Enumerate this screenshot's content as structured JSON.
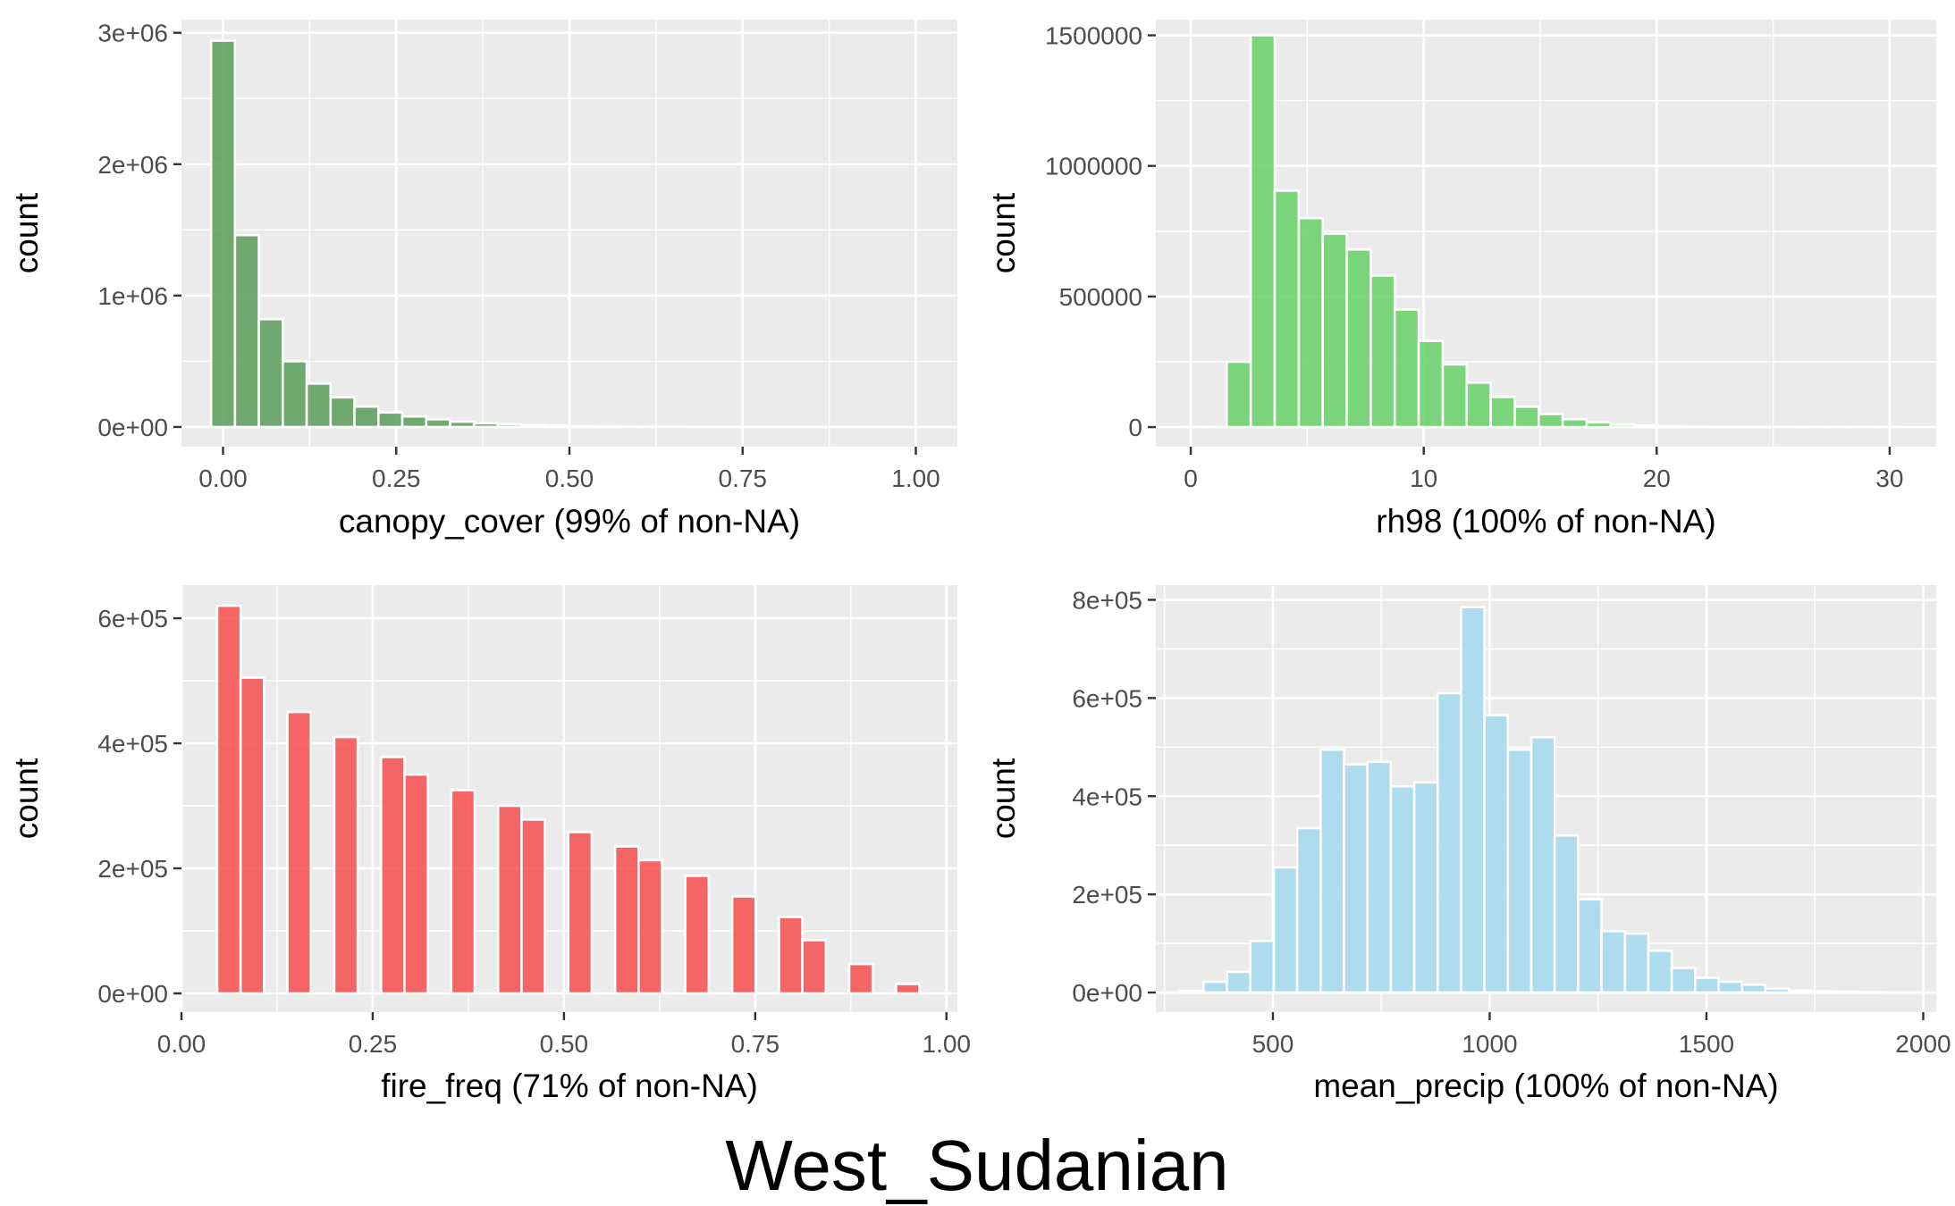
{
  "title": "West_Sudanian",
  "chart_data": [
    {
      "type": "bar",
      "subtype": "histogram",
      "xlabel": "canopy_cover (99% of non-NA)",
      "ylabel": "count",
      "fill_color": "#5a9e5a",
      "bar_alpha": 0.85,
      "xlim": [
        -0.06,
        1.06
      ],
      "ylim": [
        -150000,
        3100000
      ],
      "x_ticks": [
        0,
        0.25,
        0.5,
        0.75,
        1.0
      ],
      "x_tick_labels": [
        "0.00",
        "0.25",
        "0.50",
        "0.75",
        "1.00"
      ],
      "y_ticks": [
        0,
        1000000,
        2000000,
        3000000
      ],
      "y_tick_labels": [
        "0e+00",
        "1e+06",
        "2e+06",
        "3e+06"
      ],
      "bin_width": 0.0345,
      "bins": [
        {
          "x": 0.0,
          "count": 2940000
        },
        {
          "x": 0.0345,
          "count": 1460000
        },
        {
          "x": 0.069,
          "count": 820000
        },
        {
          "x": 0.1035,
          "count": 500000
        },
        {
          "x": 0.138,
          "count": 330000
        },
        {
          "x": 0.1725,
          "count": 225000
        },
        {
          "x": 0.207,
          "count": 155000
        },
        {
          "x": 0.2415,
          "count": 110000
        },
        {
          "x": 0.276,
          "count": 80000
        },
        {
          "x": 0.3105,
          "count": 58000
        },
        {
          "x": 0.345,
          "count": 40000
        },
        {
          "x": 0.3795,
          "count": 28000
        },
        {
          "x": 0.414,
          "count": 20000
        },
        {
          "x": 0.4485,
          "count": 14000
        },
        {
          "x": 0.483,
          "count": 10000
        },
        {
          "x": 0.5175,
          "count": 7000
        },
        {
          "x": 0.552,
          "count": 5000
        },
        {
          "x": 0.5865,
          "count": 3500
        },
        {
          "x": 0.621,
          "count": 2500
        },
        {
          "x": 0.6555,
          "count": 1800
        },
        {
          "x": 0.69,
          "count": 1200
        },
        {
          "x": 0.7245,
          "count": 900
        },
        {
          "x": 0.759,
          "count": 600
        },
        {
          "x": 0.7935,
          "count": 400
        },
        {
          "x": 0.828,
          "count": 300
        },
        {
          "x": 0.8625,
          "count": 200
        },
        {
          "x": 0.897,
          "count": 150
        },
        {
          "x": 0.9315,
          "count": 100
        },
        {
          "x": 0.966,
          "count": 80
        },
        {
          "x": 1.0005,
          "count": 50
        }
      ]
    },
    {
      "type": "bar",
      "subtype": "histogram",
      "xlabel": "rh98 (100% of non-NA)",
      "ylabel": "count",
      "fill_color": "#66d166",
      "bar_alpha": 0.85,
      "xlim": [
        -1.5,
        32.0
      ],
      "ylim": [
        -75000,
        1560000
      ],
      "x_ticks": [
        0,
        10,
        20,
        30
      ],
      "x_tick_labels": [
        "0",
        "10",
        "20",
        "30"
      ],
      "y_ticks": [
        0,
        500000,
        1000000,
        1500000
      ],
      "y_tick_labels": [
        "0",
        "500000",
        "1000000",
        "1500000"
      ],
      "bin_width": 1.03,
      "bins": [
        {
          "x": 0.0,
          "count": 0
        },
        {
          "x": 1.03,
          "count": 0
        },
        {
          "x": 2.06,
          "count": 250000
        },
        {
          "x": 3.09,
          "count": 1500000
        },
        {
          "x": 4.12,
          "count": 905000
        },
        {
          "x": 5.15,
          "count": 800000
        },
        {
          "x": 6.18,
          "count": 740000
        },
        {
          "x": 7.21,
          "count": 680000
        },
        {
          "x": 8.24,
          "count": 580000
        },
        {
          "x": 9.27,
          "count": 450000
        },
        {
          "x": 10.3,
          "count": 330000
        },
        {
          "x": 11.33,
          "count": 240000
        },
        {
          "x": 12.36,
          "count": 170000
        },
        {
          "x": 13.39,
          "count": 115000
        },
        {
          "x": 14.42,
          "count": 78000
        },
        {
          "x": 15.45,
          "count": 50000
        },
        {
          "x": 16.48,
          "count": 30000
        },
        {
          "x": 17.51,
          "count": 18000
        },
        {
          "x": 18.54,
          "count": 10000
        },
        {
          "x": 19.57,
          "count": 6000
        },
        {
          "x": 20.6,
          "count": 3500
        },
        {
          "x": 21.63,
          "count": 2000
        },
        {
          "x": 22.66,
          "count": 1200
        },
        {
          "x": 23.69,
          "count": 700
        },
        {
          "x": 24.72,
          "count": 400
        },
        {
          "x": 25.75,
          "count": 250
        },
        {
          "x": 26.78,
          "count": 150
        },
        {
          "x": 27.81,
          "count": 100
        },
        {
          "x": 28.84,
          "count": 60
        },
        {
          "x": 29.87,
          "count": 40
        }
      ]
    },
    {
      "type": "bar",
      "subtype": "histogram",
      "xlabel": "fire_freq (71% of non-NA)",
      "ylabel": "count",
      "fill_color": "#f84d4d",
      "bar_alpha": 0.85,
      "xlim": [
        0.0,
        1.0143
      ],
      "ylim": [
        -30000,
        653000
      ],
      "x_ticks": [
        0,
        0.25,
        0.5,
        0.75,
        1.0
      ],
      "x_tick_labels": [
        "0.00",
        "0.25",
        "0.50",
        "0.75",
        "1.00"
      ],
      "y_ticks": [
        0,
        200000,
        400000,
        600000
      ],
      "y_tick_labels": [
        "0e+00",
        "2e+05",
        "4e+05",
        "6e+05"
      ],
      "bin_width": 0.0306,
      "bins": [
        {
          "x": 0.062,
          "count": 620000
        },
        {
          "x": 0.0926,
          "count": 505000
        },
        {
          "x": 0.1538,
          "count": 450000
        },
        {
          "x": 0.215,
          "count": 410000
        },
        {
          "x": 0.2762,
          "count": 378000
        },
        {
          "x": 0.3068,
          "count": 350000
        },
        {
          "x": 0.368,
          "count": 325000
        },
        {
          "x": 0.4292,
          "count": 300000
        },
        {
          "x": 0.4598,
          "count": 278000
        },
        {
          "x": 0.521,
          "count": 258000
        },
        {
          "x": 0.5822,
          "count": 235000
        },
        {
          "x": 0.6128,
          "count": 213000
        },
        {
          "x": 0.674,
          "count": 188000
        },
        {
          "x": 0.7352,
          "count": 155000
        },
        {
          "x": 0.7964,
          "count": 122000
        },
        {
          "x": 0.827,
          "count": 85000
        },
        {
          "x": 0.8882,
          "count": 47000
        },
        {
          "x": 0.9494,
          "count": 15000
        }
      ]
    },
    {
      "type": "bar",
      "subtype": "histogram",
      "xlabel": "mean_precip (100% of non-NA)",
      "ylabel": "count",
      "fill_color": "#a8d9ee",
      "bar_alpha": 0.9,
      "xlim": [
        230,
        2030
      ],
      "ylim": [
        -40000,
        830000
      ],
      "x_ticks": [
        500,
        1000,
        1500,
        2000
      ],
      "x_tick_labels": [
        "500",
        "1000",
        "1500",
        "2000"
      ],
      "y_ticks": [
        0,
        200000,
        400000,
        600000,
        800000
      ],
      "y_tick_labels": [
        "0e+00",
        "2e+05",
        "4e+05",
        "6e+05",
        "8e+05"
      ],
      "bin_width": 54,
      "bins": [
        {
          "x": 313,
          "count": 3000
        },
        {
          "x": 367,
          "count": 22000
        },
        {
          "x": 421,
          "count": 42000
        },
        {
          "x": 475,
          "count": 105000
        },
        {
          "x": 529,
          "count": 255000
        },
        {
          "x": 583,
          "count": 335000
        },
        {
          "x": 637,
          "count": 495000
        },
        {
          "x": 691,
          "count": 465000
        },
        {
          "x": 745,
          "count": 470000
        },
        {
          "x": 799,
          "count": 420000
        },
        {
          "x": 853,
          "count": 428000
        },
        {
          "x": 907,
          "count": 610000
        },
        {
          "x": 961,
          "count": 785000
        },
        {
          "x": 1015,
          "count": 565000
        },
        {
          "x": 1069,
          "count": 495000
        },
        {
          "x": 1123,
          "count": 520000
        },
        {
          "x": 1177,
          "count": 320000
        },
        {
          "x": 1231,
          "count": 190000
        },
        {
          "x": 1285,
          "count": 125000
        },
        {
          "x": 1339,
          "count": 120000
        },
        {
          "x": 1393,
          "count": 85000
        },
        {
          "x": 1447,
          "count": 50000
        },
        {
          "x": 1501,
          "count": 30000
        },
        {
          "x": 1555,
          "count": 22000
        },
        {
          "x": 1609,
          "count": 16000
        },
        {
          "x": 1663,
          "count": 8000
        },
        {
          "x": 1717,
          "count": 4000
        },
        {
          "x": 1771,
          "count": 2500
        },
        {
          "x": 1825,
          "count": 1500
        },
        {
          "x": 1879,
          "count": 800
        }
      ]
    }
  ]
}
